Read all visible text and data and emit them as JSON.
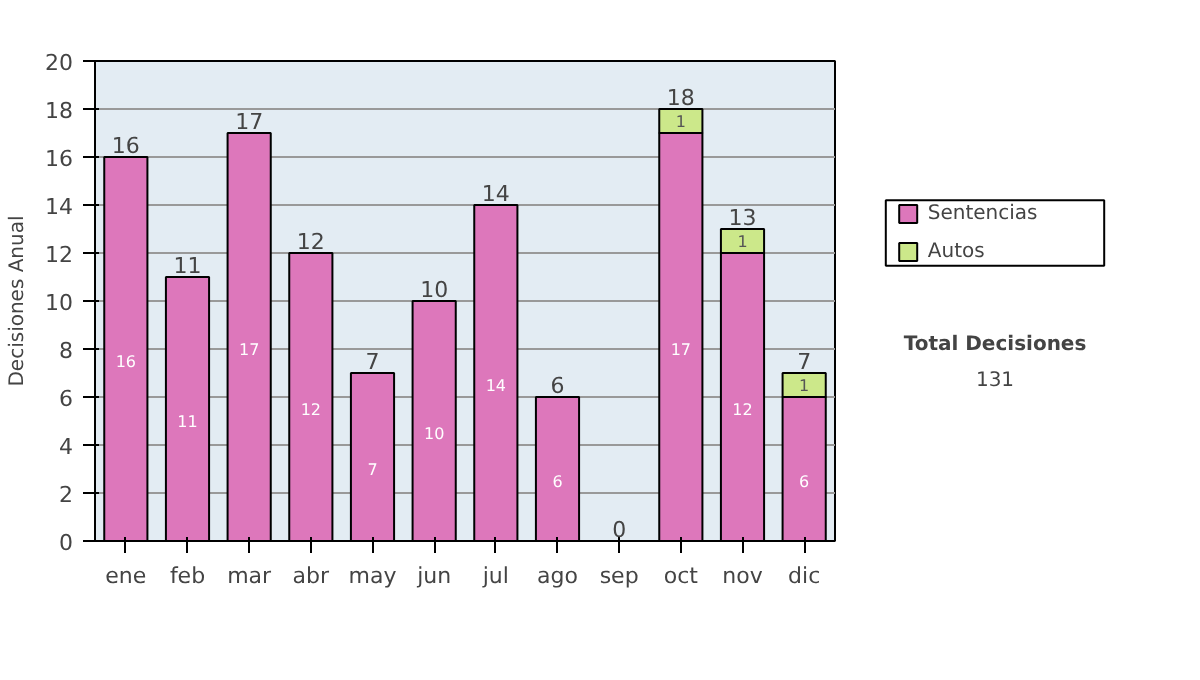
{
  "chart_data": {
    "type": "bar",
    "stacked": true,
    "ylabel": "Decisiones Anual",
    "categories": [
      "ene",
      "feb",
      "mar",
      "abr",
      "may",
      "jun",
      "jul",
      "ago",
      "sep",
      "oct",
      "nov",
      "dic"
    ],
    "series": [
      {
        "name": "Sentencias",
        "color": "#dd77bb",
        "values": [
          16,
          11,
          17,
          12,
          7,
          10,
          14,
          6,
          0,
          17,
          12,
          6
        ],
        "value_labels": [
          "16",
          "11",
          "17",
          "12",
          "7",
          "10",
          "14",
          "6",
          null,
          "17",
          "12",
          "6"
        ]
      },
      {
        "name": "Autos",
        "color": "#cce88a",
        "values": [
          0,
          0,
          0,
          0,
          0,
          0,
          0,
          0,
          0,
          1,
          1,
          1
        ],
        "value_labels": [
          null,
          null,
          null,
          null,
          null,
          null,
          null,
          null,
          null,
          "1",
          "1",
          "1"
        ]
      }
    ],
    "totals": [
      "16",
      "11",
      "17",
      "12",
      "7",
      "10",
      "14",
      "6",
      "0",
      "18",
      "13",
      "7"
    ],
    "ylim": [
      0,
      20
    ],
    "yticks": [
      0,
      2,
      4,
      6,
      8,
      10,
      12,
      14,
      16,
      18,
      20
    ],
    "grid": "y",
    "legend": "right",
    "annotations": [
      "Total Decisiones",
      "131"
    ]
  }
}
